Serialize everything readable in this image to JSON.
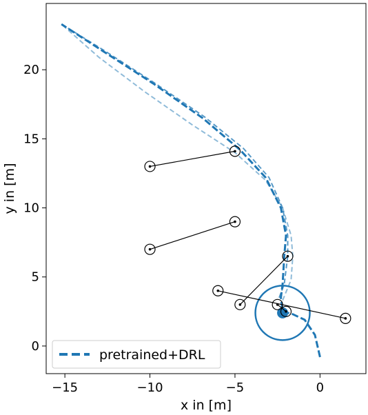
{
  "chart_data": {
    "type": "line",
    "xlabel": "x in [m]",
    "ylabel": "y in [m]",
    "xlim": [
      -16.1,
      2.7
    ],
    "ylim": [
      -2.0,
      24.8
    ],
    "xticks": [
      -15,
      -10,
      -5,
      0
    ],
    "yticks": [
      0,
      5,
      10,
      15,
      20
    ],
    "grid": false,
    "legend": {
      "placement": "lower-left",
      "entries": [
        "pretrained+DRL"
      ]
    },
    "colors": {
      "series": "#1f77b4",
      "obstacles": "#000000"
    },
    "series": [
      {
        "name": "pretrained+DRL",
        "style": "dashed",
        "opacity": 1.0,
        "x": [
          0,
          -0.3,
          -0.9,
          -1.6,
          -2.2,
          -2.3,
          -2.2,
          -2.1,
          -2.0,
          -2.3,
          -3.2,
          -4.7,
          -6.9,
          -9.8,
          -12.7,
          -15.2
        ],
        "y": [
          -0.8,
          0.8,
          1.9,
          2.3,
          2.5,
          3.5,
          4.5,
          6.5,
          8.0,
          10.0,
          12.2,
          14.2,
          16.5,
          19.0,
          21.3,
          23.3
        ]
      },
      {
        "name": "",
        "style": "dashed",
        "opacity": 0.75,
        "x": [
          -2.4,
          -2.1,
          -1.9,
          -1.9,
          -2.2,
          -3.0,
          -4.5,
          -6.8,
          -9.8,
          -12.7,
          -15.2
        ],
        "y": [
          3.5,
          4.5,
          6.5,
          8.0,
          10.0,
          12.2,
          14.3,
          16.6,
          19.1,
          21.4,
          23.3
        ]
      },
      {
        "name": "",
        "style": "dashed",
        "opacity": 0.5,
        "x": [
          -2.2,
          -1.7,
          -1.6,
          -1.7,
          -2.2,
          -3.2,
          -5.0,
          -7.5,
          -10.3,
          -13.0,
          -15.2
        ],
        "y": [
          3.3,
          4.8,
          6.5,
          8.0,
          10.0,
          12.0,
          14.0,
          16.0,
          18.4,
          20.9,
          23.3
        ]
      }
    ],
    "obstacles": [
      {
        "start": [
          -10.0,
          13.0
        ],
        "end": [
          -5.0,
          14.1
        ]
      },
      {
        "start": [
          -10.0,
          7.0
        ],
        "end": [
          -5.0,
          9.0
        ]
      },
      {
        "start": [
          -4.7,
          3.0
        ],
        "end": [
          -1.9,
          6.5
        ]
      },
      {
        "start": [
          -6.0,
          4.0
        ],
        "end": [
          1.5,
          2.0
        ]
      },
      {
        "start": [
          -2.5,
          3.0
        ],
        "end": [
          -2.0,
          2.5
        ]
      }
    ],
    "agent": {
      "position": [
        -2.2,
        2.4
      ],
      "radius": 1.6
    }
  }
}
